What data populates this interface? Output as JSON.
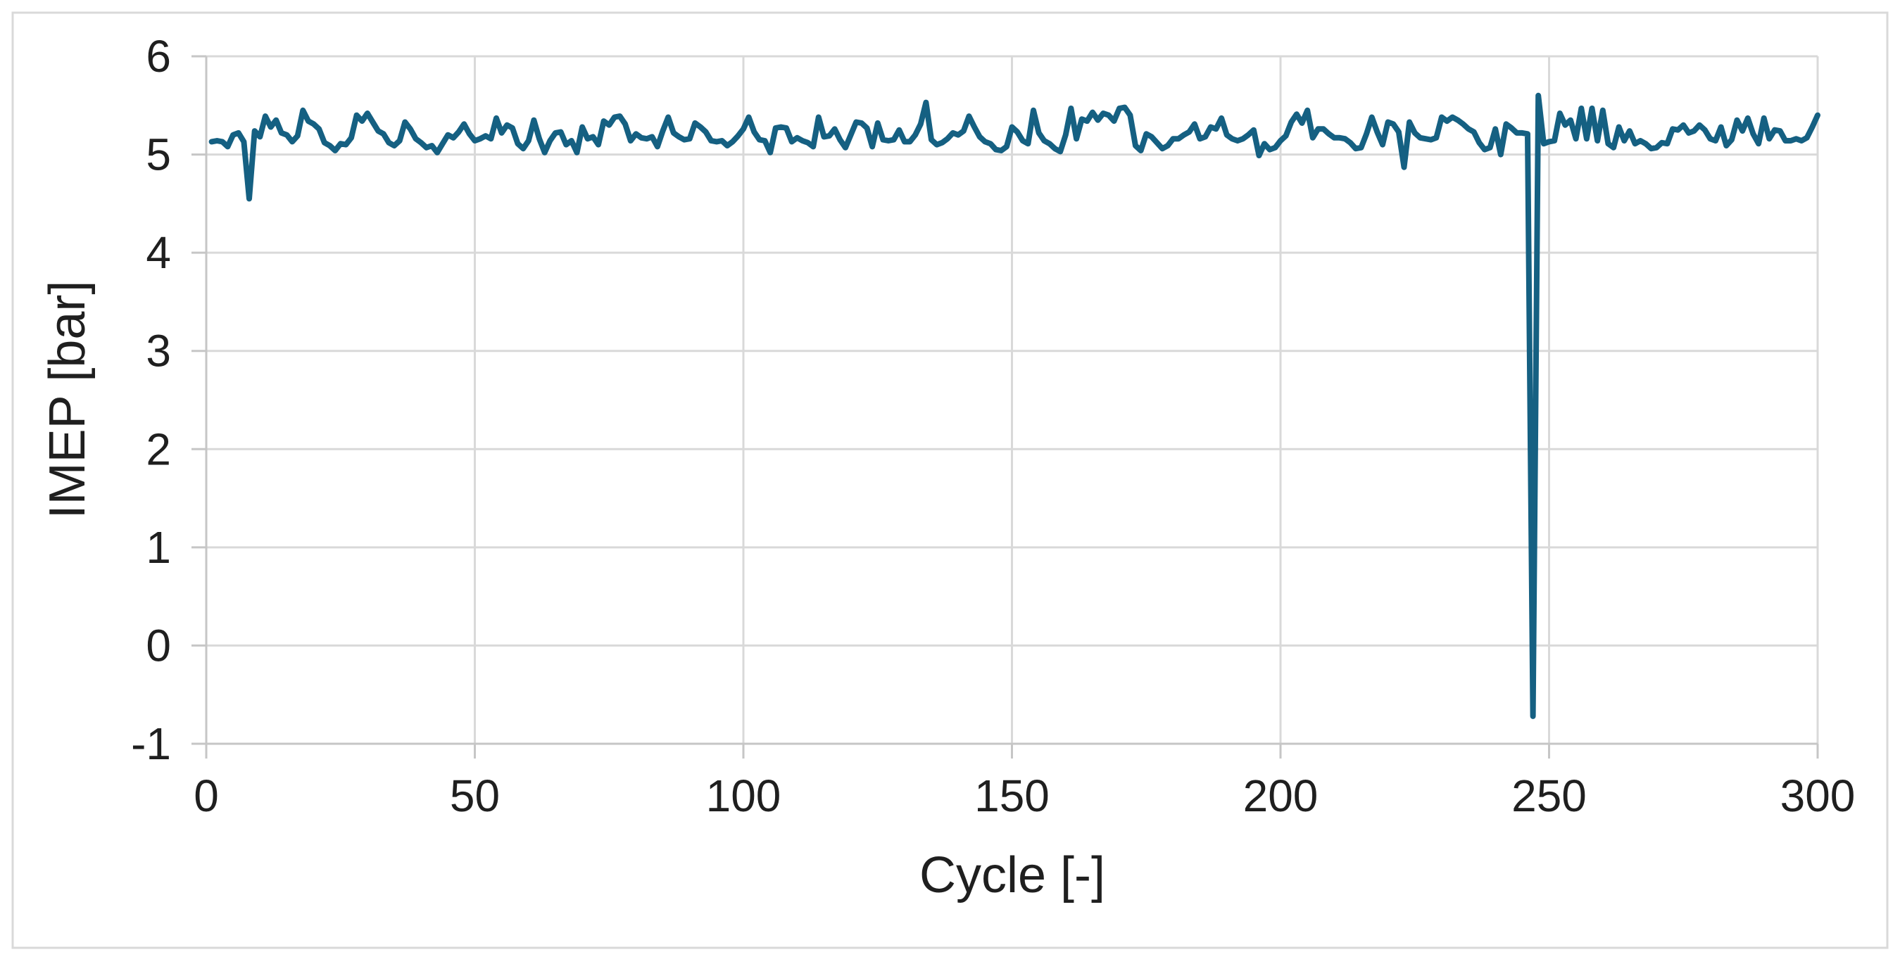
{
  "figure": {
    "background": "#FFFFFF",
    "border_color": "#D9D9D9"
  },
  "chart_data": {
    "type": "line",
    "title": "",
    "xlabel": "Cycle [-]",
    "ylabel": "IMEP [bar]",
    "xlim": [
      0,
      300
    ],
    "ylim": [
      -1,
      6
    ],
    "x_ticks": [
      0,
      50,
      100,
      150,
      200,
      250,
      300
    ],
    "y_ticks": [
      -1,
      0,
      1,
      2,
      3,
      4,
      5,
      6
    ],
    "grid": true,
    "legend": false,
    "series_name": "IMEP",
    "series_color": "#156082",
    "gridline_color": "#D9D9D9",
    "axis_color": "#C6C6C6",
    "text_color": "#1F1F1F",
    "x_start": 1,
    "x_step": 1,
    "y": [
      5.13,
      5.14,
      5.13,
      5.08,
      5.2,
      5.22,
      5.13,
      4.55,
      5.24,
      5.18,
      5.39,
      5.28,
      5.35,
      5.22,
      5.2,
      5.13,
      5.19,
      5.45,
      5.34,
      5.31,
      5.26,
      5.12,
      5.09,
      5.04,
      5.11,
      5.1,
      5.17,
      5.4,
      5.34,
      5.42,
      5.33,
      5.24,
      5.21,
      5.12,
      5.09,
      5.14,
      5.33,
      5.26,
      5.16,
      5.12,
      5.07,
      5.09,
      5.02,
      5.11,
      5.2,
      5.17,
      5.23,
      5.31,
      5.21,
      5.14,
      5.16,
      5.19,
      5.16,
      5.37,
      5.22,
      5.3,
      5.27,
      5.11,
      5.06,
      5.14,
      5.35,
      5.16,
      5.02,
      5.14,
      5.22,
      5.23,
      5.1,
      5.14,
      5.02,
      5.28,
      5.16,
      5.18,
      5.1,
      5.34,
      5.3,
      5.38,
      5.39,
      5.31,
      5.14,
      5.21,
      5.17,
      5.16,
      5.18,
      5.08,
      5.24,
      5.38,
      5.22,
      5.18,
      5.15,
      5.16,
      5.32,
      5.28,
      5.23,
      5.14,
      5.13,
      5.14,
      5.09,
      5.13,
      5.19,
      5.26,
      5.38,
      5.23,
      5.15,
      5.14,
      5.02,
      5.27,
      5.28,
      5.27,
      5.13,
      5.17,
      5.14,
      5.12,
      5.08,
      5.38,
      5.18,
      5.19,
      5.26,
      5.15,
      5.07,
      5.2,
      5.33,
      5.32,
      5.27,
      5.08,
      5.32,
      5.15,
      5.14,
      5.15,
      5.25,
      5.13,
      5.13,
      5.2,
      5.31,
      5.53,
      5.15,
      5.1,
      5.12,
      5.16,
      5.22,
      5.2,
      5.24,
      5.39,
      5.28,
      5.18,
      5.13,
      5.11,
      5.05,
      5.04,
      5.08,
      5.28,
      5.23,
      5.14,
      5.11,
      5.45,
      5.22,
      5.14,
      5.11,
      5.06,
      5.03,
      5.2,
      5.47,
      5.16,
      5.36,
      5.34,
      5.43,
      5.35,
      5.42,
      5.4,
      5.34,
      5.47,
      5.48,
      5.4,
      5.09,
      5.04,
      5.21,
      5.18,
      5.12,
      5.06,
      5.09,
      5.16,
      5.16,
      5.2,
      5.23,
      5.31,
      5.16,
      5.18,
      5.28,
      5.26,
      5.37,
      5.2,
      5.16,
      5.14,
      5.16,
      5.2,
      5.25,
      4.99,
      5.11,
      5.05,
      5.07,
      5.14,
      5.19,
      5.33,
      5.41,
      5.32,
      5.45,
      5.17,
      5.26,
      5.26,
      5.21,
      5.17,
      5.17,
      5.16,
      5.12,
      5.06,
      5.07,
      5.21,
      5.38,
      5.23,
      5.1,
      5.33,
      5.31,
      5.23,
      4.87,
      5.33,
      5.22,
      5.17,
      5.16,
      5.15,
      5.17,
      5.38,
      5.34,
      5.38,
      5.35,
      5.31,
      5.26,
      5.23,
      5.12,
      5.05,
      5.07,
      5.26,
      5.0,
      5.31,
      5.27,
      5.22,
      5.22,
      5.21,
      -0.72,
      5.6,
      5.11,
      5.13,
      5.14,
      5.42,
      5.3,
      5.35,
      5.16,
      5.47,
      5.16,
      5.47,
      5.14,
      5.45,
      5.11,
      5.07,
      5.28,
      5.14,
      5.24,
      5.11,
      5.14,
      5.11,
      5.06,
      5.07,
      5.12,
      5.11,
      5.26,
      5.25,
      5.3,
      5.22,
      5.24,
      5.3,
      5.25,
      5.16,
      5.14,
      5.28,
      5.09,
      5.15,
      5.35,
      5.24,
      5.37,
      5.21,
      5.11,
      5.37,
      5.16,
      5.25,
      5.24,
      5.14,
      5.14,
      5.16,
      5.14,
      5.17,
      5.28,
      5.4
    ]
  }
}
